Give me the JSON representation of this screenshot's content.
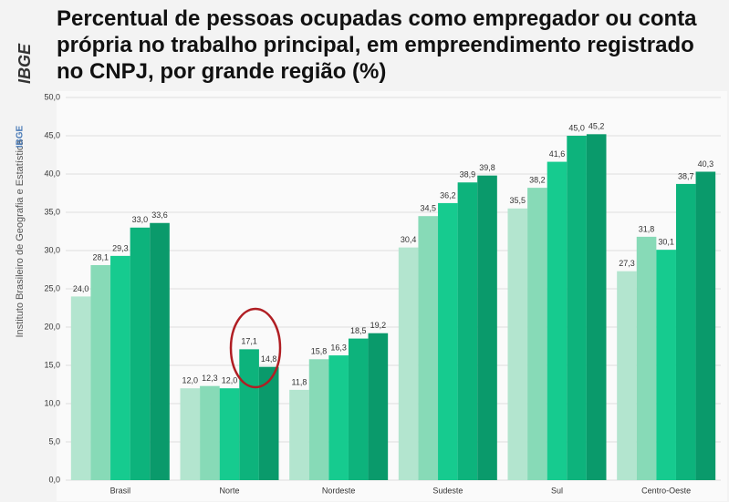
{
  "logo": "IBGE",
  "side_text": "Instituto Brasileiro de Geografia e Estatística",
  "side_tag": "IBGE",
  "chart_data": {
    "type": "bar",
    "title": "Percentual de pessoas ocupadas como empregador ou conta própria no trabalho principal, em empreendimento registrado no CNPJ, por grande região (%)",
    "categories": [
      "Brasil",
      "Norte",
      "Nordeste",
      "Sudeste",
      "Sul",
      "Centro-Oeste"
    ],
    "series": [
      {
        "color": "#b3e5cf",
        "values": [
          24.0,
          12.0,
          11.8,
          30.4,
          35.5,
          27.3
        ],
        "value_labels": [
          "24,0",
          "12,0",
          "11,8",
          "30,4",
          "35,5",
          "27,3"
        ]
      },
      {
        "color": "#87dab7",
        "values": [
          28.1,
          12.3,
          15.8,
          34.5,
          38.2,
          31.8
        ],
        "value_labels": [
          "28,1",
          "12,3",
          "15,8",
          "34,5",
          "38,2",
          "31,8"
        ]
      },
      {
        "color": "#16cb8f",
        "values": [
          29.3,
          12.0,
          16.3,
          36.2,
          41.6,
          30.1
        ],
        "value_labels": [
          "29,3",
          "12,0",
          "16,3",
          "36,2",
          "41,6",
          "30,1"
        ]
      },
      {
        "color": "#0db37c",
        "values": [
          33.0,
          17.1,
          18.5,
          38.9,
          45.0,
          38.7
        ],
        "value_labels": [
          "33,0",
          "17,1",
          "18,5",
          "38,9",
          "45,0",
          "38,7"
        ]
      },
      {
        "color": "#0a9a6b",
        "values": [
          33.6,
          14.8,
          19.2,
          39.8,
          45.2,
          40.3
        ],
        "value_labels": [
          "33,6",
          "14,8",
          "19,2",
          "39,8",
          "45,2",
          "40,3"
        ]
      }
    ],
    "ylim": [
      0,
      50
    ],
    "yticks": [
      {
        "value": 0,
        "label": "0,0"
      },
      {
        "value": 5,
        "label": "5,0"
      },
      {
        "value": 10,
        "label": "10,0"
      },
      {
        "value": 15,
        "label": "15,0"
      },
      {
        "value": 20,
        "label": "20,0"
      },
      {
        "value": 25,
        "label": "25,0"
      },
      {
        "value": 30,
        "label": "30,0"
      },
      {
        "value": 35,
        "label": "35,0"
      },
      {
        "value": 40,
        "label": "40,0"
      },
      {
        "value": 45,
        "label": "45,0"
      },
      {
        "value": 50,
        "label": "50,0"
      }
    ],
    "grid": true
  }
}
